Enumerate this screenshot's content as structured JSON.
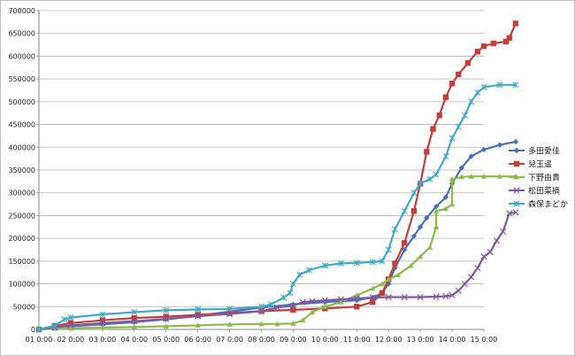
{
  "chart_data": {
    "type": "line",
    "title": "",
    "xlabel": "",
    "ylabel": "",
    "ylim": [
      0,
      700000
    ],
    "yticks": [
      "0",
      "50000",
      "100000",
      "150000",
      "200000",
      "250000",
      "300000",
      "350000",
      "400000",
      "450000",
      "500000",
      "550000",
      "600000",
      "650000",
      "700000"
    ],
    "xticks": [
      "01 0:00",
      "02 0:00",
      "03 0:00",
      "04 0:00",
      "05 0:00",
      "06 0:00",
      "07 0:00",
      "08 0:00",
      "09 0:00",
      "10 0:00",
      "11 0:00",
      "12 0:00",
      "13 0:00",
      "14 0:00",
      "15 0:00"
    ],
    "grid": "horizontal",
    "legend": "right",
    "series": [
      {
        "name": "多田愛佳",
        "color": "#4a72b8",
        "marker": "diamond",
        "x": [
          0,
          0.5,
          1,
          2,
          3,
          4,
          5,
          6,
          7,
          8,
          9,
          10,
          10.5,
          10.8,
          11,
          11.2,
          11.5,
          11.8,
          12,
          12.2,
          12.5,
          12.8,
          13,
          13.3,
          13.6,
          14,
          14.5,
          15
        ],
        "y": [
          0,
          4000,
          7000,
          11000,
          16000,
          22000,
          30000,
          39000,
          48000,
          55000,
          60000,
          64000,
          70000,
          80000,
          100000,
          135000,
          175000,
          205000,
          225000,
          245000,
          270000,
          290000,
          320000,
          355000,
          380000,
          395000,
          405000,
          412000
        ]
      },
      {
        "name": "兒玉遥",
        "color": "#c1403c",
        "marker": "square",
        "x": [
          0,
          0.5,
          1,
          2,
          3,
          4,
          5,
          6,
          7,
          8,
          9,
          10,
          10.5,
          10.8,
          11,
          11.2,
          11.5,
          11.8,
          12,
          12.2,
          12.4,
          12.6,
          12.8,
          13,
          13.2,
          13.5,
          13.8,
          14,
          14.3,
          14.7,
          14.8,
          15
        ],
        "y": [
          0,
          8000,
          14000,
          20000,
          25000,
          28000,
          32000,
          36000,
          40000,
          43000,
          46000,
          50000,
          60000,
          80000,
          110000,
          145000,
          190000,
          260000,
          320000,
          390000,
          440000,
          470000,
          510000,
          540000,
          560000,
          585000,
          610000,
          622000,
          628000,
          632000,
          640000,
          672000
        ]
      },
      {
        "name": "下野由貴",
        "color": "#8dbb4c",
        "marker": "triangle",
        "x": [
          0,
          0.5,
          1,
          2,
          3,
          4,
          5,
          6,
          7,
          7.5,
          8,
          8.3,
          8.6,
          9,
          9.5,
          10,
          10.5,
          10.8,
          11,
          11.3,
          11.7,
          12,
          12.3,
          12.5,
          12.5,
          12.8,
          13,
          13,
          13.3,
          13.6,
          14,
          14.5,
          15
        ],
        "y": [
          0,
          2000,
          3000,
          4000,
          5000,
          7000,
          9000,
          11000,
          12000,
          12000,
          13000,
          20000,
          38000,
          50000,
          60000,
          75000,
          90000,
          100000,
          110000,
          120000,
          140000,
          160000,
          180000,
          225000,
          260000,
          265000,
          275000,
          330000,
          335000,
          336000,
          336000,
          336000,
          336000
        ]
      },
      {
        "name": "松田菜摘",
        "color": "#7e5a9f",
        "marker": "x",
        "x": [
          0,
          0.5,
          1,
          2,
          3,
          4,
          5,
          6,
          7,
          7.5,
          8,
          8.3,
          8.6,
          9,
          9.5,
          10,
          10.5,
          11,
          11.5,
          12,
          12.5,
          12.8,
          13,
          13.2,
          13.4,
          13.6,
          13.8,
          14,
          14.2,
          14.4,
          14.6,
          14.8,
          15
        ],
        "y": [
          0,
          4000,
          9000,
          14000,
          18000,
          23000,
          29000,
          34000,
          40000,
          48000,
          52000,
          60000,
          62000,
          64000,
          66000,
          68000,
          70000,
          71000,
          71000,
          71000,
          72000,
          73000,
          75000,
          85000,
          100000,
          115000,
          135000,
          160000,
          170000,
          195000,
          215000,
          255000,
          257000
        ]
      },
      {
        "name": "森保まどか",
        "color": "#43aac6",
        "marker": "star",
        "x": [
          0,
          0.5,
          0.8,
          1,
          2,
          3,
          4,
          5,
          6,
          7,
          7.3,
          7.7,
          7.9,
          8,
          8.2,
          8.5,
          9,
          9.5,
          10,
          10.5,
          10.8,
          11,
          11.2,
          11.5,
          11.8,
          12,
          12.3,
          12.5,
          12.8,
          13,
          13.2,
          13.4,
          13.6,
          13.8,
          14,
          14.5,
          15
        ],
        "y": [
          0,
          8000,
          22000,
          26000,
          33000,
          38000,
          42000,
          44000,
          45000,
          50000,
          55000,
          70000,
          80000,
          100000,
          120000,
          130000,
          140000,
          145000,
          146000,
          148000,
          150000,
          175000,
          220000,
          260000,
          300000,
          320000,
          330000,
          340000,
          380000,
          420000,
          445000,
          470000,
          500000,
          520000,
          532000,
          537000,
          537000
        ]
      }
    ]
  }
}
